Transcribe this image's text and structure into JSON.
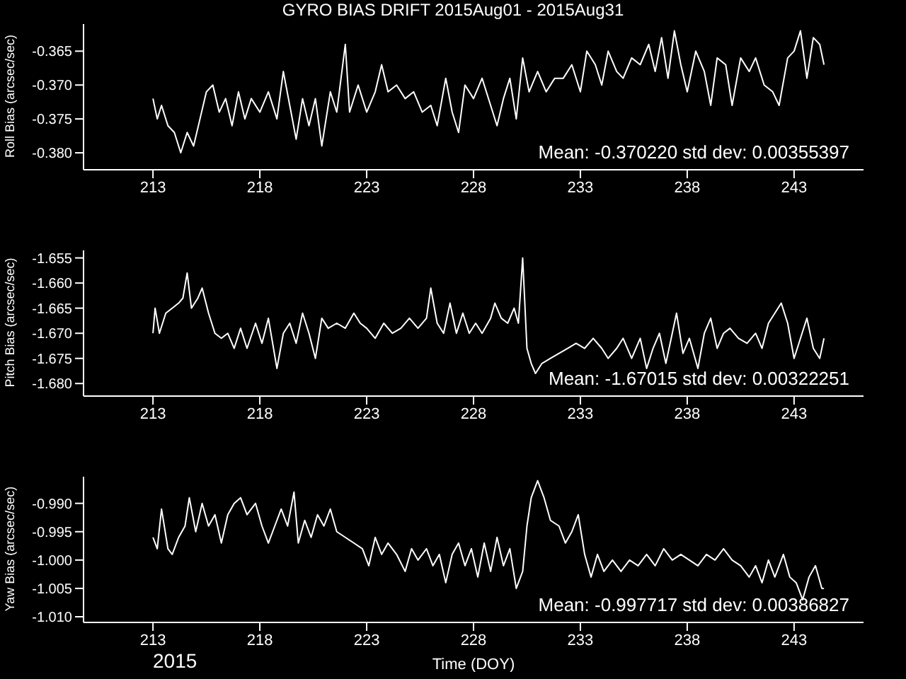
{
  "chart_data": [
    {
      "type": "line",
      "title": "GYRO BIAS DRIFT 2015Aug01 - 2015Aug31",
      "ylabel": "Roll Bias (arcsec/sec)",
      "xlim": [
        209.75,
        246.25
      ],
      "xticks": [
        213,
        218,
        223,
        228,
        233,
        238,
        243
      ],
      "ylim": [
        -0.3825,
        -0.361
      ],
      "yticks": [
        {
          "value": -0.365,
          "label": "-0.365"
        },
        {
          "value": -0.37,
          "label": "-0.370"
        },
        {
          "value": -0.375,
          "label": "-0.375"
        },
        {
          "value": -0.38,
          "label": "-0.380"
        }
      ],
      "annotations": [
        "Mean: -0.370220 std dev: 0.00355397"
      ],
      "x": [
        213.0,
        213.2,
        213.4,
        213.7,
        214.0,
        214.3,
        214.6,
        214.9,
        215.2,
        215.5,
        215.8,
        216.1,
        216.4,
        216.7,
        217.0,
        217.3,
        217.6,
        218.0,
        218.4,
        218.8,
        219.1,
        219.4,
        219.7,
        220.0,
        220.3,
        220.6,
        220.9,
        221.3,
        221.6,
        222.0,
        222.2,
        222.6,
        223.0,
        223.4,
        223.7,
        224.0,
        224.4,
        224.8,
        225.2,
        225.6,
        226.0,
        226.3,
        226.7,
        227.0,
        227.3,
        227.6,
        228.0,
        228.4,
        228.8,
        229.1,
        229.4,
        229.7,
        230.0,
        230.3,
        230.6,
        231.0,
        231.4,
        231.8,
        232.2,
        232.6,
        233.0,
        233.3,
        233.7,
        234.0,
        234.3,
        234.7,
        235.0,
        235.4,
        235.8,
        236.2,
        236.5,
        236.8,
        237.1,
        237.4,
        237.7,
        238.0,
        238.4,
        238.8,
        239.1,
        239.4,
        239.8,
        240.1,
        240.5,
        240.9,
        241.2,
        241.6,
        242.0,
        242.3,
        242.7,
        243.0,
        243.3,
        243.6,
        243.9,
        244.2,
        244.4
      ],
      "series": [
        {
          "color": "#ffffff",
          "values": [
            -0.372,
            -0.375,
            -0.373,
            -0.376,
            -0.377,
            -0.38,
            -0.377,
            -0.379,
            -0.375,
            -0.371,
            -0.37,
            -0.374,
            -0.372,
            -0.376,
            -0.371,
            -0.375,
            -0.372,
            -0.374,
            -0.371,
            -0.375,
            -0.368,
            -0.373,
            -0.378,
            -0.372,
            -0.376,
            -0.372,
            -0.379,
            -0.371,
            -0.374,
            -0.364,
            -0.374,
            -0.37,
            -0.374,
            -0.371,
            -0.367,
            -0.371,
            -0.37,
            -0.372,
            -0.371,
            -0.374,
            -0.373,
            -0.376,
            -0.369,
            -0.374,
            -0.377,
            -0.37,
            -0.372,
            -0.369,
            -0.373,
            -0.376,
            -0.372,
            -0.369,
            -0.375,
            -0.366,
            -0.371,
            -0.368,
            -0.371,
            -0.369,
            -0.369,
            -0.367,
            -0.371,
            -0.365,
            -0.367,
            -0.37,
            -0.365,
            -0.368,
            -0.369,
            -0.366,
            -0.367,
            -0.364,
            -0.368,
            -0.363,
            -0.369,
            -0.362,
            -0.367,
            -0.371,
            -0.365,
            -0.368,
            -0.373,
            -0.366,
            -0.367,
            -0.373,
            -0.366,
            -0.368,
            -0.366,
            -0.37,
            -0.371,
            -0.373,
            -0.366,
            -0.365,
            -0.362,
            -0.369,
            -0.363,
            -0.364,
            -0.367
          ]
        }
      ]
    },
    {
      "type": "line",
      "ylabel": "Pitch Bias (arcsec/sec)",
      "xlim": [
        209.75,
        246.25
      ],
      "xticks": [
        213,
        218,
        223,
        228,
        233,
        238,
        243
      ],
      "ylim": [
        -1.6825,
        -1.6535
      ],
      "yticks": [
        {
          "value": -1.655,
          "label": "-1.655"
        },
        {
          "value": -1.66,
          "label": "-1.660"
        },
        {
          "value": -1.665,
          "label": "-1.665"
        },
        {
          "value": -1.67,
          "label": "-1.670"
        },
        {
          "value": -1.675,
          "label": "-1.675"
        },
        {
          "value": -1.68,
          "label": "-1.680"
        }
      ],
      "annotations": [
        "Mean: -1.67015 std dev: 0.00322251"
      ],
      "x": [
        213.0,
        213.1,
        213.3,
        213.6,
        213.9,
        214.2,
        214.4,
        214.6,
        214.8,
        215.1,
        215.3,
        215.6,
        215.9,
        216.2,
        216.5,
        216.8,
        217.1,
        217.4,
        217.8,
        218.1,
        218.4,
        218.8,
        219.1,
        219.4,
        219.7,
        220.0,
        220.3,
        220.6,
        220.9,
        221.2,
        221.6,
        222.0,
        222.4,
        222.7,
        223.0,
        223.4,
        223.8,
        224.2,
        224.6,
        225.0,
        225.4,
        225.8,
        226.0,
        226.3,
        226.6,
        226.9,
        227.2,
        227.5,
        227.8,
        228.1,
        228.4,
        228.8,
        229.0,
        229.3,
        229.6,
        229.9,
        230.1,
        230.3,
        230.5,
        230.7,
        230.9,
        231.2,
        231.6,
        232.0,
        232.4,
        232.8,
        233.2,
        233.6,
        234.0,
        234.3,
        234.7,
        235.0,
        235.4,
        235.8,
        236.1,
        236.4,
        236.7,
        237.0,
        237.3,
        237.5,
        237.8,
        238.1,
        238.5,
        238.8,
        239.1,
        239.4,
        239.7,
        240.0,
        240.4,
        240.8,
        241.2,
        241.5,
        241.8,
        242.1,
        242.4,
        242.7,
        243.0,
        243.3,
        243.6,
        243.9,
        244.2,
        244.4
      ],
      "series": [
        {
          "color": "#ffffff",
          "values": [
            -1.67,
            -1.665,
            -1.67,
            -1.666,
            -1.665,
            -1.664,
            -1.663,
            -1.658,
            -1.665,
            -1.663,
            -1.661,
            -1.666,
            -1.67,
            -1.671,
            -1.67,
            -1.673,
            -1.669,
            -1.673,
            -1.668,
            -1.672,
            -1.667,
            -1.677,
            -1.67,
            -1.668,
            -1.672,
            -1.666,
            -1.67,
            -1.675,
            -1.667,
            -1.669,
            -1.668,
            -1.669,
            -1.666,
            -1.668,
            -1.669,
            -1.671,
            -1.668,
            -1.67,
            -1.669,
            -1.667,
            -1.669,
            -1.667,
            -1.661,
            -1.668,
            -1.67,
            -1.664,
            -1.67,
            -1.666,
            -1.67,
            -1.668,
            -1.67,
            -1.667,
            -1.664,
            -1.667,
            -1.668,
            -1.665,
            -1.668,
            -1.655,
            -1.673,
            -1.676,
            -1.678,
            -1.676,
            -1.675,
            -1.674,
            -1.673,
            -1.672,
            -1.673,
            -1.671,
            -1.673,
            -1.675,
            -1.673,
            -1.671,
            -1.675,
            -1.671,
            -1.677,
            -1.673,
            -1.67,
            -1.676,
            -1.67,
            -1.666,
            -1.674,
            -1.671,
            -1.677,
            -1.67,
            -1.667,
            -1.673,
            -1.67,
            -1.669,
            -1.671,
            -1.672,
            -1.67,
            -1.673,
            -1.668,
            -1.666,
            -1.664,
            -1.668,
            -1.675,
            -1.671,
            -1.667,
            -1.673,
            -1.675,
            -1.671
          ]
        }
      ]
    },
    {
      "type": "line",
      "xlabel": "Time (DOY)",
      "ylabel": "Yaw Bias (arcsec/sec)",
      "xlim": [
        209.75,
        246.25
      ],
      "xticks": [
        213,
        218,
        223,
        228,
        233,
        238,
        243
      ],
      "ylim": [
        -1.011,
        -0.9853
      ],
      "yticks": [
        {
          "value": -0.99,
          "label": "-0.990"
        },
        {
          "value": -0.995,
          "label": "-0.995"
        },
        {
          "value": -1.0,
          "label": "-1.000"
        },
        {
          "value": -1.005,
          "label": "-1.005"
        },
        {
          "value": -1.01,
          "label": "-1.010"
        }
      ],
      "annotations": [
        "Mean: -0.997717 std dev: 0.00386827",
        "2015"
      ],
      "x": [
        213.0,
        213.2,
        213.4,
        213.7,
        213.9,
        214.2,
        214.5,
        214.7,
        215.0,
        215.3,
        215.6,
        215.9,
        216.2,
        216.5,
        216.8,
        217.1,
        217.4,
        217.8,
        218.1,
        218.4,
        218.7,
        219.0,
        219.3,
        219.6,
        219.8,
        220.1,
        220.4,
        220.7,
        221.0,
        221.3,
        221.6,
        222.0,
        222.4,
        222.8,
        223.1,
        223.4,
        223.7,
        224.0,
        224.4,
        224.8,
        225.1,
        225.4,
        225.8,
        226.1,
        226.4,
        226.7,
        227.0,
        227.3,
        227.6,
        227.9,
        228.2,
        228.5,
        228.8,
        229.1,
        229.4,
        229.7,
        230.0,
        230.3,
        230.5,
        230.7,
        231.0,
        231.3,
        231.6,
        232.0,
        232.3,
        232.6,
        232.9,
        233.2,
        233.5,
        233.8,
        234.1,
        234.5,
        234.9,
        235.3,
        235.7,
        236.1,
        236.5,
        236.9,
        237.3,
        237.7,
        238.1,
        238.5,
        238.9,
        239.3,
        239.7,
        240.1,
        240.5,
        240.9,
        241.2,
        241.5,
        241.8,
        242.1,
        242.5,
        242.8,
        243.1,
        243.4,
        243.7,
        244.0,
        244.3,
        244.4
      ],
      "series": [
        {
          "color": "#ffffff",
          "values": [
            -0.996,
            -0.998,
            -0.991,
            -0.998,
            -0.999,
            -0.996,
            -0.994,
            -0.989,
            -0.995,
            -0.99,
            -0.994,
            -0.992,
            -0.997,
            -0.992,
            -0.99,
            -0.989,
            -0.992,
            -0.99,
            -0.994,
            -0.997,
            -0.994,
            -0.991,
            -0.994,
            -0.988,
            -0.997,
            -0.993,
            -0.996,
            -0.992,
            -0.994,
            -0.991,
            -0.995,
            -0.996,
            -0.997,
            -0.998,
            -1.001,
            -0.996,
            -0.999,
            -0.997,
            -0.999,
            -1.002,
            -0.998,
            -1.0,
            -0.998,
            -1.001,
            -0.999,
            -1.004,
            -0.999,
            -0.997,
            -1.001,
            -0.998,
            -1.003,
            -0.997,
            -1.002,
            -0.996,
            -1.001,
            -0.998,
            -1.005,
            -1.002,
            -0.994,
            -0.989,
            -0.986,
            -0.989,
            -0.993,
            -0.994,
            -0.997,
            -0.995,
            -0.992,
            -0.999,
            -1.003,
            -0.999,
            -1.002,
            -1.0,
            -1.002,
            -1.0,
            -1.001,
            -0.999,
            -1.001,
            -0.998,
            -1.0,
            -0.999,
            -1.0,
            -1.001,
            -0.999,
            -1.0,
            -0.998,
            -1.0,
            -1.001,
            -1.003,
            -1.001,
            -1.004,
            -1.0,
            -1.003,
            -0.999,
            -1.003,
            -1.004,
            -1.007,
            -1.003,
            -1.001,
            -1.005,
            -1.005
          ]
        }
      ]
    }
  ]
}
